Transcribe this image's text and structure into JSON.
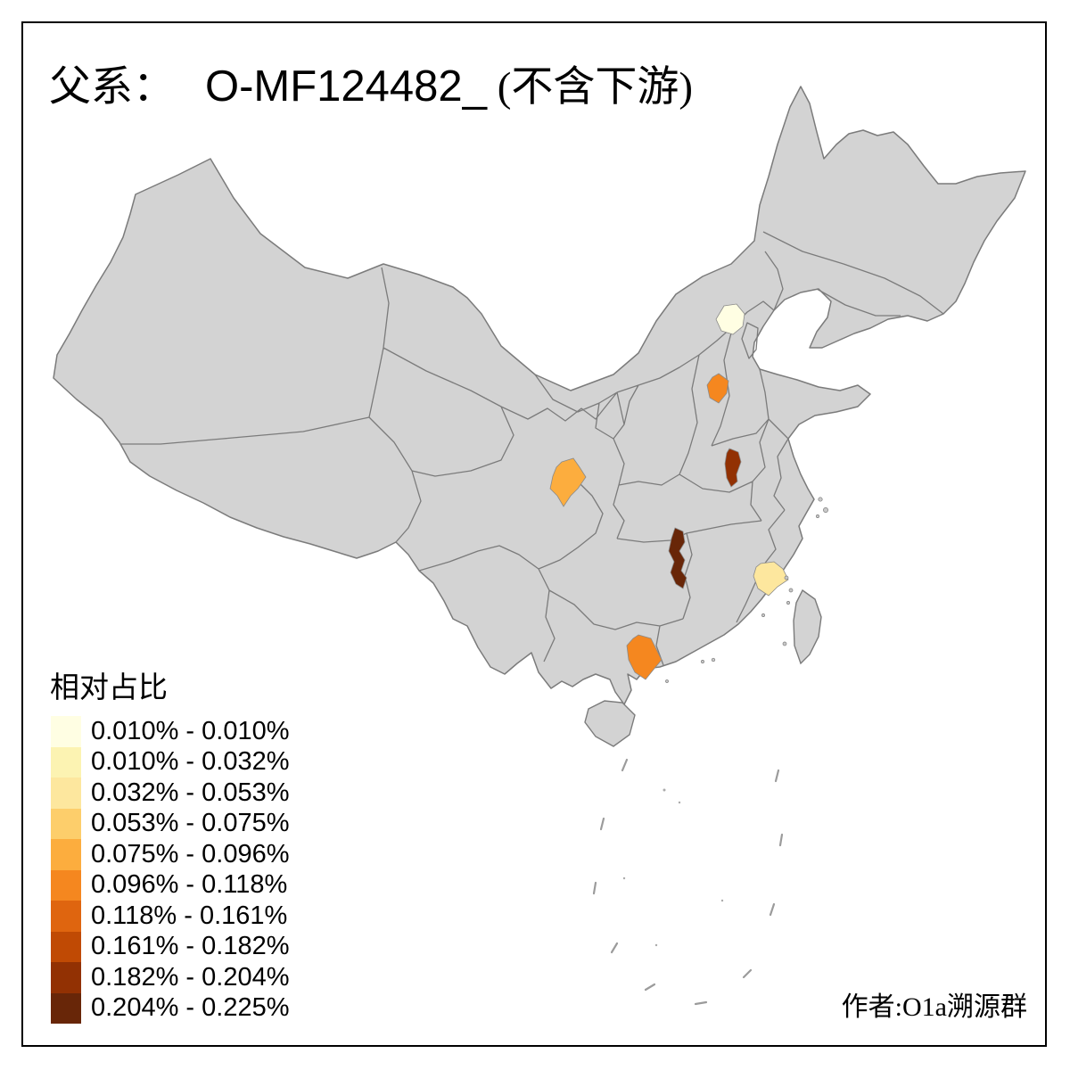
{
  "title": {
    "prefix": "父系：",
    "code": "O-MF124482_",
    "suffix": "(不含下游)"
  },
  "legend": {
    "title": "相对占比",
    "items": [
      {
        "label": "0.010% - 0.010%",
        "color": "#FFFEE3"
      },
      {
        "label": "0.010% - 0.032%",
        "color": "#FCF3B2"
      },
      {
        "label": "0.032% - 0.053%",
        "color": "#FDE79E"
      },
      {
        "label": "0.053% - 0.075%",
        "color": "#FDCE6B"
      },
      {
        "label": "0.075% - 0.096%",
        "color": "#FCAD3E"
      },
      {
        "label": "0.096% - 0.118%",
        "color": "#F5871F"
      },
      {
        "label": "0.118% - 0.161%",
        "color": "#DF650F"
      },
      {
        "label": "0.161% - 0.182%",
        "color": "#C04A04"
      },
      {
        "label": "0.182% - 0.204%",
        "color": "#923103"
      },
      {
        "label": "0.204% - 0.225%",
        "color": "#682608"
      }
    ]
  },
  "attribution": "作者:O1a溯源群",
  "map": {
    "background": "#FFFFFF",
    "land_color": "#D3D3D3",
    "border_color": "#7B7B7B",
    "regions": [
      {
        "color": "#FFFEE3",
        "value_range": "0.010% - 0.010%"
      },
      {
        "color": "#F5871F",
        "value_range": "0.096% - 0.118%"
      },
      {
        "color": "#923103",
        "value_range": "0.182% - 0.204%"
      },
      {
        "color": "#FCAD3E",
        "value_range": "0.075% - 0.096%"
      },
      {
        "color": "#682608",
        "value_range": "0.204% - 0.225%"
      },
      {
        "color": "#FDE79E",
        "value_range": "0.032% - 0.053%"
      },
      {
        "color": "#F5871F",
        "value_range": "0.096% - 0.118%"
      }
    ]
  }
}
